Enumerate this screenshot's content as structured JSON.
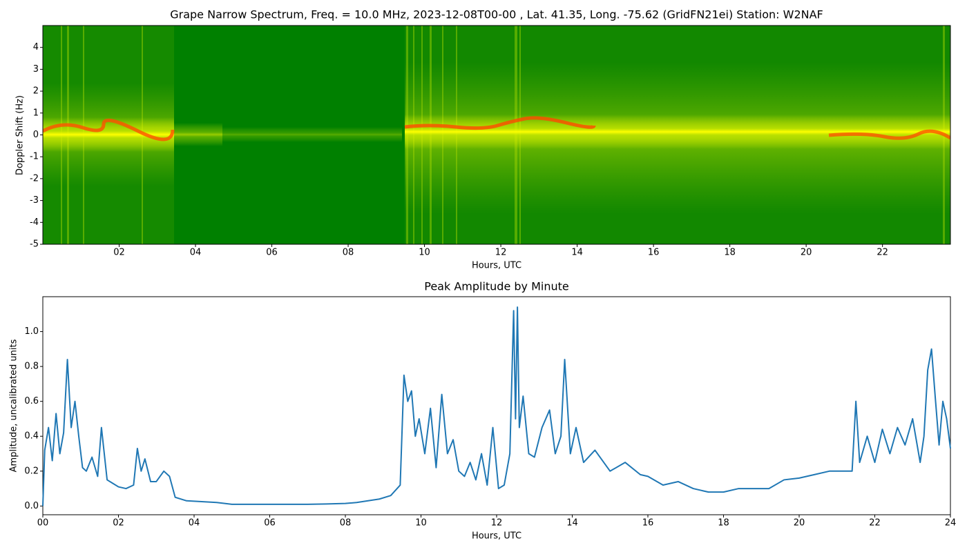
{
  "chart_data": [
    {
      "type": "spectrogram",
      "title": "Grape Narrow Spectrum, Freq. = 10.0 MHz, 2023-12-08T00-00 , Lat.  41.35, Long. -75.62 (GridFN21ei) Station: W2NAF",
      "x_label": "Hours, UTC",
      "y_label": "Doppler Shift (Hz)",
      "xlim": [
        0,
        23.78
      ],
      "ylim": [
        -5,
        5
      ],
      "xticks": [
        {
          "value": 2,
          "label": "02"
        },
        {
          "value": 4,
          "label": "04"
        },
        {
          "value": 6,
          "label": "06"
        },
        {
          "value": 8,
          "label": "08"
        },
        {
          "value": 10,
          "label": "10"
        },
        {
          "value": 12,
          "label": "12"
        },
        {
          "value": 14,
          "label": "14"
        },
        {
          "value": 16,
          "label": "16"
        },
        {
          "value": 18,
          "label": "18"
        },
        {
          "value": 20,
          "label": "20"
        },
        {
          "value": 22,
          "label": "22"
        }
      ],
      "yticks": [
        -5,
        -4,
        -3,
        -2,
        -1,
        0,
        1,
        2,
        3,
        4
      ]
    },
    {
      "type": "line",
      "title": "Peak Amplitude by Minute",
      "x_label": "Hours, UTC",
      "y_label": "Amplitude, uncalibrated units",
      "color": "#1f77b4",
      "xlim": [
        0,
        24
      ],
      "ylim": [
        -0.05,
        1.2
      ],
      "xticks": [
        {
          "value": 0,
          "label": "00"
        },
        {
          "value": 2,
          "label": "02"
        },
        {
          "value": 4,
          "label": "04"
        },
        {
          "value": 6,
          "label": "06"
        },
        {
          "value": 8,
          "label": "08"
        },
        {
          "value": 10,
          "label": "10"
        },
        {
          "value": 12,
          "label": "12"
        },
        {
          "value": 14,
          "label": "14"
        },
        {
          "value": 16,
          "label": "16"
        },
        {
          "value": 18,
          "label": "18"
        },
        {
          "value": 20,
          "label": "20"
        },
        {
          "value": 22,
          "label": "22"
        },
        {
          "value": 24,
          "label": "24"
        }
      ],
      "yticks": [
        {
          "value": 0,
          "label": "0.0"
        },
        {
          "value": 0.2,
          "label": "0.2"
        },
        {
          "value": 0.4,
          "label": "0.4"
        },
        {
          "value": 0.6,
          "label": "0.6"
        },
        {
          "value": 0.8,
          "label": "0.8"
        },
        {
          "value": 1,
          "label": "1.0"
        }
      ],
      "x": [
        0,
        0.05,
        0.15,
        0.25,
        0.35,
        0.45,
        0.55,
        0.65,
        0.75,
        0.85,
        0.95,
        1.05,
        1.15,
        1.3,
        1.45,
        1.55,
        1.7,
        1.85,
        2.0,
        2.2,
        2.4,
        2.5,
        2.6,
        2.7,
        2.85,
        3.0,
        3.2,
        3.35,
        3.5,
        3.8,
        4.2,
        4.6,
        5.0,
        5.5,
        6.0,
        6.5,
        7.0,
        7.5,
        8.0,
        8.3,
        8.6,
        8.9,
        9.2,
        9.45,
        9.55,
        9.65,
        9.75,
        9.85,
        9.95,
        10.1,
        10.25,
        10.4,
        10.55,
        10.7,
        10.85,
        11.0,
        11.15,
        11.3,
        11.45,
        11.6,
        11.75,
        11.9,
        12.05,
        12.2,
        12.35,
        12.45,
        12.5,
        12.55,
        12.6,
        12.7,
        12.85,
        13.0,
        13.2,
        13.4,
        13.55,
        13.7,
        13.8,
        13.95,
        14.1,
        14.3,
        14.6,
        15.0,
        15.4,
        15.8,
        16.0,
        16.4,
        16.8,
        17.2,
        17.6,
        18.0,
        18.4,
        18.8,
        19.2,
        19.6,
        20.0,
        20.4,
        20.8,
        21.2,
        21.4,
        21.5,
        21.6,
        21.8,
        22.0,
        22.2,
        22.4,
        22.6,
        22.8,
        23.0,
        23.2,
        23.3,
        23.4,
        23.5,
        23.6,
        23.7,
        23.8,
        23.9,
        24.0
      ],
      "values": [
        0,
        0.32,
        0.45,
        0.26,
        0.53,
        0.3,
        0.42,
        0.84,
        0.45,
        0.6,
        0.4,
        0.22,
        0.2,
        0.28,
        0.17,
        0.45,
        0.15,
        0.13,
        0.11,
        0.1,
        0.12,
        0.33,
        0.2,
        0.27,
        0.14,
        0.14,
        0.2,
        0.17,
        0.05,
        0.03,
        0.025,
        0.02,
        0.01,
        0.01,
        0.01,
        0.01,
        0.01,
        0.012,
        0.015,
        0.02,
        0.03,
        0.04,
        0.06,
        0.12,
        0.75,
        0.6,
        0.66,
        0.4,
        0.5,
        0.3,
        0.56,
        0.22,
        0.64,
        0.3,
        0.38,
        0.2,
        0.17,
        0.25,
        0.15,
        0.3,
        0.12,
        0.45,
        0.1,
        0.12,
        0.3,
        1.12,
        0.5,
        1.14,
        0.45,
        0.63,
        0.3,
        0.28,
        0.45,
        0.55,
        0.3,
        0.4,
        0.84,
        0.3,
        0.45,
        0.25,
        0.32,
        0.2,
        0.25,
        0.18,
        0.17,
        0.12,
        0.14,
        0.1,
        0.08,
        0.08,
        0.1,
        0.1,
        0.1,
        0.15,
        0.16,
        0.18,
        0.2,
        0.2,
        0.2,
        0.6,
        0.25,
        0.4,
        0.25,
        0.44,
        0.3,
        0.45,
        0.35,
        0.5,
        0.25,
        0.4,
        0.78,
        0.9,
        0.62,
        0.35,
        0.6,
        0.5,
        0.33
      ]
    }
  ]
}
